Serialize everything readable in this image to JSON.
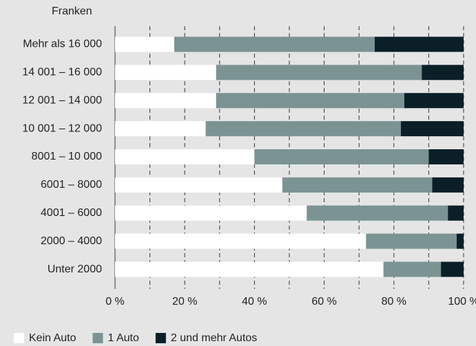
{
  "chart_data": {
    "type": "stacked_barh",
    "y_axis_label": "Franken",
    "categories": [
      "Mehr als 16 000",
      "14 001 – 16 000",
      "12 001 – 14 000",
      "10 001 – 12 000",
      "8001 – 10 000",
      "6001 – 8000",
      "4001 – 6000",
      "2000 – 4000",
      "Unter 2000"
    ],
    "series": [
      {
        "name": "Kein Auto",
        "color": "#ffffff",
        "values": [
          17,
          29,
          29,
          26,
          40,
          48,
          55,
          72,
          77
        ]
      },
      {
        "name": "1 Auto",
        "color": "#7b9393",
        "values": [
          57.5,
          59,
          54,
          56,
          50,
          43,
          40.5,
          26,
          16.5
        ]
      },
      {
        "name": "2 und mehr Autos",
        "color": "#0b1f27",
        "values": [
          25.5,
          12,
          17,
          18,
          10,
          9,
          4.5,
          2,
          6.5
        ]
      }
    ],
    "xlim": [
      0,
      100
    ],
    "xticks": [
      {
        "value": 0,
        "label": "0 %"
      },
      {
        "value": 10,
        "label": null
      },
      {
        "value": 20,
        "label": "20 %"
      },
      {
        "value": 30,
        "label": null
      },
      {
        "value": 40,
        "label": "40 %"
      },
      {
        "value": 50,
        "label": null
      },
      {
        "value": 60,
        "label": "60 %"
      },
      {
        "value": 70,
        "label": null
      },
      {
        "value": 80,
        "label": "80 %"
      },
      {
        "value": 90,
        "label": null
      },
      {
        "value": 100,
        "label": "100 %"
      }
    ],
    "grid": true,
    "legend": "bottom"
  }
}
